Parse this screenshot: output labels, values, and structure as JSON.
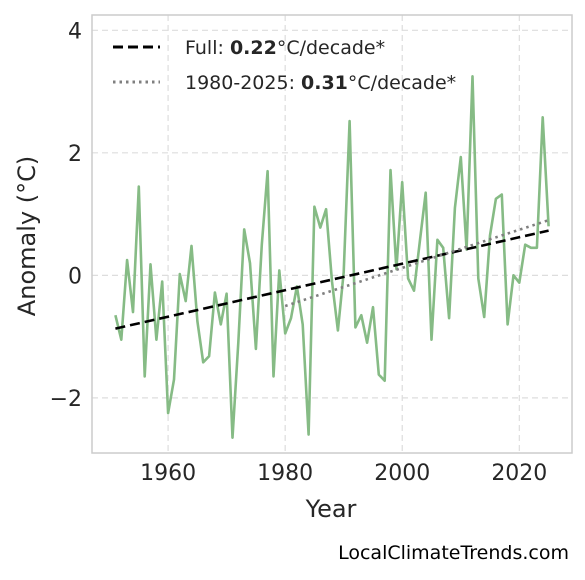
{
  "chart_data": {
    "type": "line",
    "xlabel": "Year",
    "ylabel": "Anomaly (°C)",
    "xlim": [
      1947,
      2029
    ],
    "ylim": [
      -2.9,
      4.25
    ],
    "xticks": [
      "1960",
      "1980",
      "2000",
      "2020"
    ],
    "yticks": [
      "−2",
      "0",
      "2",
      "4"
    ],
    "grid": true,
    "legend_position": "top-left",
    "series": [
      {
        "color": "#86bb85",
        "x": [
          1951,
          1952,
          1953,
          1954,
          1955,
          1956,
          1957,
          1958,
          1959,
          1960,
          1961,
          1962,
          1963,
          1964,
          1965,
          1966,
          1967,
          1968,
          1969,
          1970,
          1971,
          1972,
          1973,
          1974,
          1975,
          1976,
          1977,
          1978,
          1979,
          1980,
          1981,
          1982,
          1983,
          1984,
          1985,
          1986,
          1987,
          1988,
          1989,
          1990,
          1991,
          1992,
          1993,
          1994,
          1995,
          1996,
          1997,
          1998,
          1999,
          2000,
          2001,
          2002,
          2003,
          2004,
          2005,
          2006,
          2007,
          2008,
          2009,
          2010,
          2011,
          2012,
          2013,
          2014,
          2015,
          2016,
          2017,
          2018,
          2019,
          2020,
          2021,
          2022,
          2023,
          2024,
          2025
        ],
        "values": [
          -0.65,
          -1.05,
          0.25,
          -0.6,
          1.45,
          -1.65,
          0.18,
          -1.05,
          -0.1,
          -2.25,
          -1.7,
          0.02,
          -0.42,
          0.48,
          -0.75,
          -1.42,
          -1.32,
          -0.28,
          -0.8,
          -0.3,
          -2.65,
          -1.1,
          0.75,
          0.2,
          -1.2,
          0.5,
          1.7,
          -1.65,
          0.08,
          -0.95,
          -0.7,
          -0.18,
          -0.8,
          -2.6,
          1.12,
          0.78,
          1.08,
          -0.1,
          -0.9,
          0.05,
          2.52,
          -0.85,
          -0.65,
          -1.1,
          -0.52,
          -1.62,
          -1.72,
          1.72,
          0.1,
          1.52,
          -0.05,
          -0.25,
          0.55,
          1.35,
          -1.05,
          0.58,
          0.45,
          -0.7,
          1.1,
          1.93,
          0.42,
          3.25,
          -0.05,
          -0.68,
          0.65,
          1.25,
          1.32,
          -0.8,
          0.0,
          -0.12,
          0.5,
          0.45,
          0.45,
          2.58,
          0.8
        ]
      },
      {
        "name": "Full: 0.22°C/decade*",
        "style": "dashed",
        "color": "#000000",
        "x": [
          1951,
          2025
        ],
        "values": [
          -0.87,
          0.73
        ]
      },
      {
        "name": "1980-2025: 0.31°C/decade*",
        "style": "dotted",
        "color": "#7f7f7f",
        "x": [
          1980,
          2025
        ],
        "values": [
          -0.5,
          0.9
        ]
      }
    ],
    "legend": [
      {
        "prefix": "Full: ",
        "value": "0.22",
        "suffix": "°C/decade*"
      },
      {
        "prefix": "1980-2025: ",
        "value": "0.31",
        "suffix": "°C/decade*"
      }
    ]
  },
  "credit": "LocalClimateTrends.com"
}
